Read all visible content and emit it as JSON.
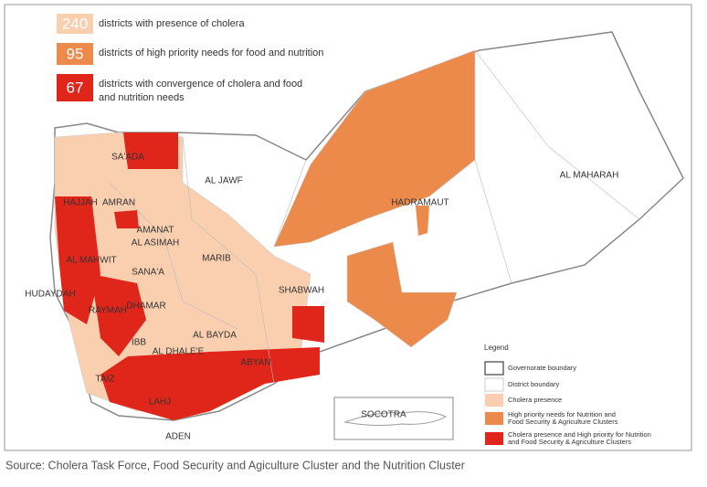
{
  "summary": [
    {
      "count": 240,
      "lines": [
        "districts with presence of cholera"
      ]
    },
    {
      "count": 95,
      "lines": [
        "districts of high priority needs for food and nutrition"
      ]
    },
    {
      "count": 67,
      "lines": [
        "districts with convergence of cholera and food",
        "and nutrition needs"
      ]
    }
  ],
  "regions": [
    {
      "lines": [
        "SA'ADA"
      ]
    },
    {
      "lines": [
        "AL JAWF"
      ]
    },
    {
      "lines": [
        "HAJJAH"
      ]
    },
    {
      "lines": [
        "AMRAN"
      ]
    },
    {
      "lines": [
        "AMANAT",
        "AL ASIMAH"
      ]
    },
    {
      "lines": [
        "AL MAHWIT"
      ]
    },
    {
      "lines": [
        "SANA'A"
      ]
    },
    {
      "lines": [
        "MARIB"
      ]
    },
    {
      "lines": [
        "HUDAYDAH"
      ]
    },
    {
      "lines": [
        "RAYMAH"
      ]
    },
    {
      "lines": [
        "DHAMAR"
      ]
    },
    {
      "lines": [
        "SHABWAH"
      ]
    },
    {
      "lines": [
        "HADRAMAUT"
      ]
    },
    {
      "lines": [
        "AL MAHARAH"
      ]
    },
    {
      "lines": [
        "AL BAYDA"
      ]
    },
    {
      "lines": [
        "IBB"
      ]
    },
    {
      "lines": [
        "AL DHALE'E"
      ]
    },
    {
      "lines": [
        "ABYAN"
      ]
    },
    {
      "lines": [
        "TAIZ"
      ]
    },
    {
      "lines": [
        "LAHJ"
      ]
    },
    {
      "lines": [
        "ADEN"
      ]
    }
  ],
  "inset": "SOCOTRA",
  "legend": {
    "title": "Legend",
    "items": [
      {
        "lines": [
          "Governorate boundary"
        ]
      },
      {
        "lines": [
          "District boundary"
        ]
      },
      {
        "lines": [
          "Cholera presence"
        ]
      },
      {
        "lines": [
          "High priority needs for Nutrition and",
          "Food Security & Agriculture Clusters"
        ]
      },
      {
        "lines": [
          "Cholera presence and High priority for Nutrition",
          "and Food Security & Agriculture Clusters"
        ]
      }
    ]
  },
  "source": "Source: Cholera Task Force, Food Security and Agiculture Cluster and the Nutrition Cluster"
}
